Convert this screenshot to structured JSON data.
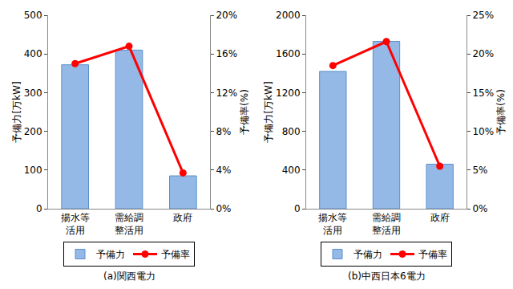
{
  "chart_data": [
    {
      "type": "bar",
      "title": "(a)関西電力",
      "categories": [
        "揚水等\n活用",
        "需給調\n整活用",
        "政府"
      ],
      "y_label": "予備力[万kW]",
      "y2_label": "予備率(%)",
      "ylim": [
        0,
        500
      ],
      "yticks": [
        0,
        100,
        200,
        300,
        400,
        500
      ],
      "y2lim": [
        0,
        20
      ],
      "y2ticks": [
        {
          "value": 0,
          "label": "0%"
        },
        {
          "value": 4,
          "label": "4%"
        },
        {
          "value": 8,
          "label": "8%"
        },
        {
          "value": 12,
          "label": "12%"
        },
        {
          "value": 16,
          "label": "16%"
        },
        {
          "value": 20,
          "label": "20%"
        }
      ],
      "grid": false,
      "legend": "bottom",
      "series": [
        {
          "name": "予備力",
          "type": "bar",
          "color": "#95b9e7",
          "values": [
            372,
            410,
            85
          ]
        },
        {
          "name": "予備率",
          "type": "line",
          "axis": "y2",
          "color": "#ff0000",
          "marker": "circle",
          "line_style": "solid",
          "values": [
            15.0,
            16.8,
            3.7
          ]
        }
      ]
    },
    {
      "type": "bar",
      "title": "(b)中西日本6電力",
      "categories": [
        "揚水等\n活用",
        "需給調\n整活用",
        "政府"
      ],
      "y_label": "予備力[万kW]",
      "y2_label": "予備率(%)",
      "ylim": [
        0,
        2000
      ],
      "yticks": [
        0,
        400,
        800,
        1200,
        1600,
        2000
      ],
      "y2lim": [
        0,
        25
      ],
      "y2ticks": [
        {
          "value": 0,
          "label": "0%"
        },
        {
          "value": 5,
          "label": "5%"
        },
        {
          "value": 10,
          "label": "10%"
        },
        {
          "value": 15,
          "label": "15%"
        },
        {
          "value": 20,
          "label": "20%"
        },
        {
          "value": 25,
          "label": "25%"
        }
      ],
      "grid": false,
      "legend": "bottom",
      "series": [
        {
          "name": "予備力",
          "type": "bar",
          "color": "#95b9e7",
          "values": [
            1420,
            1730,
            460
          ]
        },
        {
          "name": "予備率",
          "type": "line",
          "axis": "y2",
          "color": "#ff0000",
          "marker": "circle",
          "line_style": "solid",
          "values": [
            18.5,
            21.6,
            5.5
          ]
        }
      ]
    }
  ]
}
